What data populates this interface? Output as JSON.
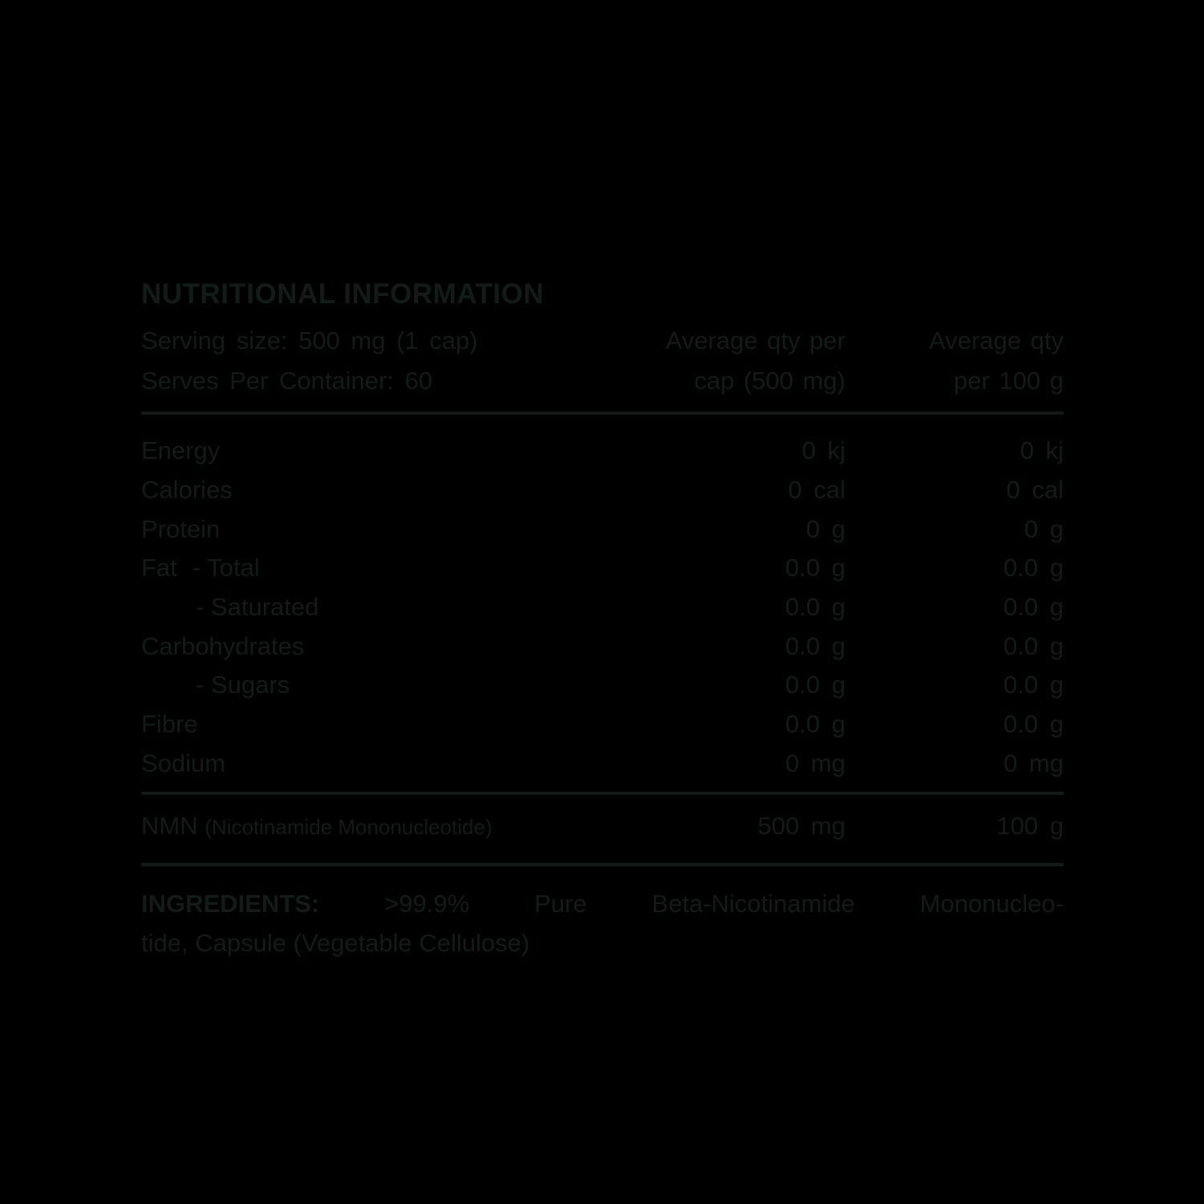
{
  "colors": {
    "background": "#000000",
    "text": "#111b18",
    "rule": "#101a17"
  },
  "label": {
    "title": "NUTRITIONAL INFORMATION",
    "serving": {
      "line1": "Serving size: 500 mg (1 cap)",
      "line2": "Serves Per Container: 60"
    },
    "columns": {
      "col1_line1": "Average qty per",
      "col1_line2": "cap (500 mg)",
      "col2_line1": "Average qty",
      "col2_line2": "per 100 g"
    }
  },
  "table": {
    "rows": [
      {
        "label": "Energy",
        "col1": "0 kj",
        "col2": "0 kj"
      },
      {
        "label": "Calories",
        "col1": "0 cal",
        "col2": "0 cal"
      },
      {
        "label": "Protein",
        "col1": "0 g",
        "col2": "0 g"
      },
      {
        "label": "Fat",
        "sublabel": "- Total",
        "col1": "0.0 g",
        "col2": "0.0 g"
      },
      {
        "label": "- Saturated",
        "col1": "0.0 g",
        "col2": "0.0 g"
      },
      {
        "label": "Carbohydrates",
        "col1": "0.0 g",
        "col2": "0.0 g"
      },
      {
        "label": "- Sugars",
        "col1": "0.0 g",
        "col2": "0.0 g"
      },
      {
        "label": "Fibre",
        "col1": "0.0 g",
        "col2": "0.0 g"
      },
      {
        "label": "Sodium",
        "col1": "0 mg",
        "col2": "0 mg"
      }
    ],
    "nmn": {
      "name": "NMN",
      "detail": "(Nicotinamide Mononucleotide)",
      "col1": "500 mg",
      "col2": "100 g"
    }
  },
  "ingredients": {
    "heading": "INGREDIENTS:",
    "line1_rest": ">99.9% Pure Beta-Nicotinamide Mononucleo-",
    "line2": "tide, Capsule (Vegetable Cellulose)"
  }
}
